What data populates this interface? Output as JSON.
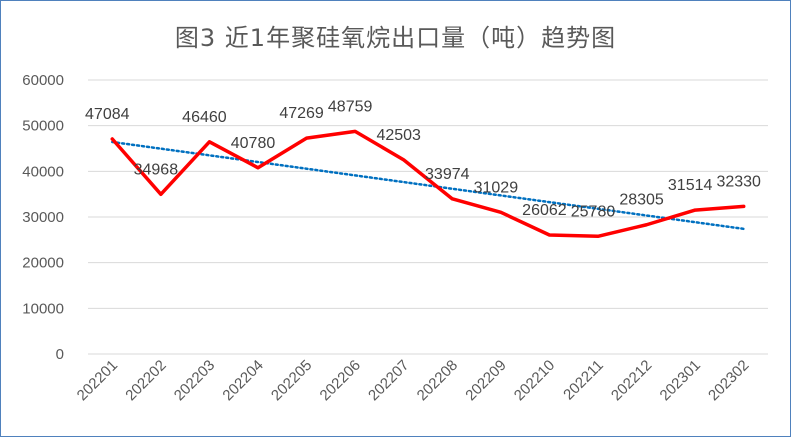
{
  "chart_data": {
    "type": "line",
    "title": "图3  近1年聚硅氧烷出口量（吨）趋势图",
    "categories": [
      "202201",
      "202202",
      "202203",
      "202204",
      "202205",
      "202206",
      "202207",
      "202208",
      "202209",
      "202210",
      "202211",
      "202212",
      "202301",
      "202302"
    ],
    "series": [
      {
        "values": [
          47084,
          34968,
          46460,
          40780,
          47269,
          48759,
          42503,
          33974,
          31029,
          26062,
          25780,
          28305,
          31514,
          32330
        ],
        "color": "#ff0000"
      }
    ],
    "trendline": {
      "type": "linear",
      "style": "dotted",
      "color": "#0070c0"
    },
    "ylim": [
      0,
      60000
    ],
    "yticks": [
      0,
      10000,
      20000,
      30000,
      40000,
      50000,
      60000
    ],
    "grid": true,
    "legend": "none"
  }
}
